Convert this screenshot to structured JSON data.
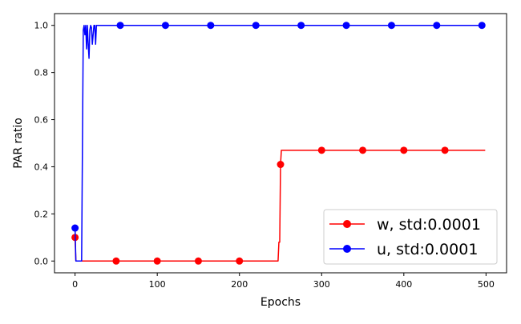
{
  "chart_data": {
    "type": "line",
    "xlabel": "Epochs",
    "ylabel": "PAR ratio",
    "xlim": [
      -25,
      525
    ],
    "ylim": [
      -0.05,
      1.05
    ],
    "x_ticks": [
      0,
      100,
      200,
      300,
      400,
      500
    ],
    "y_ticks": [
      0.0,
      0.2,
      0.4,
      0.6,
      0.8,
      1.0
    ],
    "x_tick_labels": [
      "0",
      "100",
      "200",
      "300",
      "400",
      "500"
    ],
    "y_tick_labels": [
      "0.0",
      "0.2",
      "0.4",
      "0.6",
      "0.8",
      "1.0"
    ],
    "grid": false,
    "legend_position": "bottom-right",
    "series": [
      {
        "name": "w, std:0.0001",
        "color": "#ff0000",
        "line": [
          [
            0,
            0.1
          ],
          [
            1,
            0.0
          ],
          [
            247,
            0.0
          ],
          [
            248,
            0.08
          ],
          [
            249,
            0.08
          ],
          [
            250,
            0.41
          ],
          [
            251,
            0.47
          ],
          [
            499,
            0.47
          ]
        ],
        "markers": [
          [
            0,
            0.1
          ],
          [
            50,
            0.0
          ],
          [
            100,
            0.0
          ],
          [
            150,
            0.0
          ],
          [
            200,
            0.0
          ],
          [
            250,
            0.41
          ],
          [
            300,
            0.47
          ],
          [
            350,
            0.47
          ],
          [
            400,
            0.47
          ],
          [
            450,
            0.47
          ]
        ]
      },
      {
        "name": "u, std:0.0001",
        "color": "#0000ff",
        "line": [
          [
            0,
            0.14
          ],
          [
            1,
            0.0
          ],
          [
            8,
            0.0
          ],
          [
            10,
            0.98
          ],
          [
            11,
            1.0
          ],
          [
            12,
            0.96
          ],
          [
            13,
            1.0
          ],
          [
            14,
            0.9
          ],
          [
            15,
            1.0
          ],
          [
            16,
            0.92
          ],
          [
            17,
            0.86
          ],
          [
            18,
            0.98
          ],
          [
            19,
            1.0
          ],
          [
            20,
            0.99
          ],
          [
            21,
            0.92
          ],
          [
            22,
            0.96
          ],
          [
            23,
            1.0
          ],
          [
            24,
            1.0
          ],
          [
            25,
            0.92
          ],
          [
            26,
            1.0
          ],
          [
            499,
            1.0
          ]
        ],
        "markers": [
          [
            0,
            0.14
          ],
          [
            55,
            1.0
          ],
          [
            110,
            1.0
          ],
          [
            165,
            1.0
          ],
          [
            220,
            1.0
          ],
          [
            275,
            1.0
          ],
          [
            330,
            1.0
          ],
          [
            385,
            1.0
          ],
          [
            440,
            1.0
          ],
          [
            495,
            1.0
          ]
        ]
      }
    ]
  }
}
